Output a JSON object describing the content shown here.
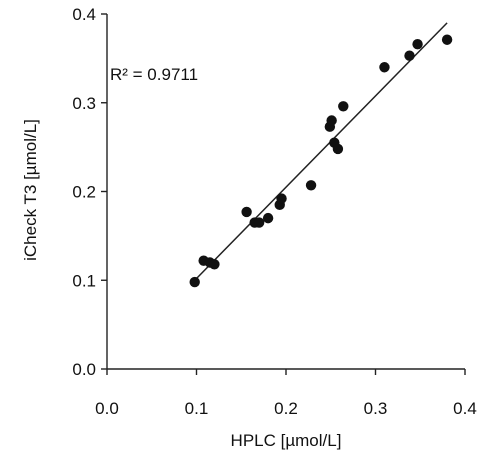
{
  "chart_data": {
    "type": "scatter",
    "xlabel": "HPLC [µmol/L]",
    "ylabel": "iCheck T3 [µmol/L]",
    "xlim": [
      0,
      0.4
    ],
    "ylim": [
      0,
      0.4
    ],
    "x_ticks": [
      "0.0",
      "0.1",
      "0.2",
      "0.3",
      "0.4"
    ],
    "y_ticks": [
      "0.0",
      "0.1",
      "0.2",
      "0.3",
      "0.4"
    ],
    "grid": false,
    "annotation": "R² = 0.9711",
    "trendline": {
      "x": [
        0.1,
        0.38
      ],
      "y": [
        0.102,
        0.39
      ]
    },
    "points": [
      {
        "x": 0.098,
        "y": 0.098
      },
      {
        "x": 0.108,
        "y": 0.122
      },
      {
        "x": 0.115,
        "y": 0.12
      },
      {
        "x": 0.12,
        "y": 0.118
      },
      {
        "x": 0.156,
        "y": 0.177
      },
      {
        "x": 0.165,
        "y": 0.165
      },
      {
        "x": 0.17,
        "y": 0.165
      },
      {
        "x": 0.18,
        "y": 0.17
      },
      {
        "x": 0.193,
        "y": 0.185
      },
      {
        "x": 0.195,
        "y": 0.192
      },
      {
        "x": 0.228,
        "y": 0.207
      },
      {
        "x": 0.249,
        "y": 0.273
      },
      {
        "x": 0.251,
        "y": 0.28
      },
      {
        "x": 0.254,
        "y": 0.255
      },
      {
        "x": 0.258,
        "y": 0.248
      },
      {
        "x": 0.264,
        "y": 0.296
      },
      {
        "x": 0.31,
        "y": 0.34
      },
      {
        "x": 0.338,
        "y": 0.353
      },
      {
        "x": 0.347,
        "y": 0.366
      },
      {
        "x": 0.38,
        "y": 0.371
      }
    ]
  }
}
